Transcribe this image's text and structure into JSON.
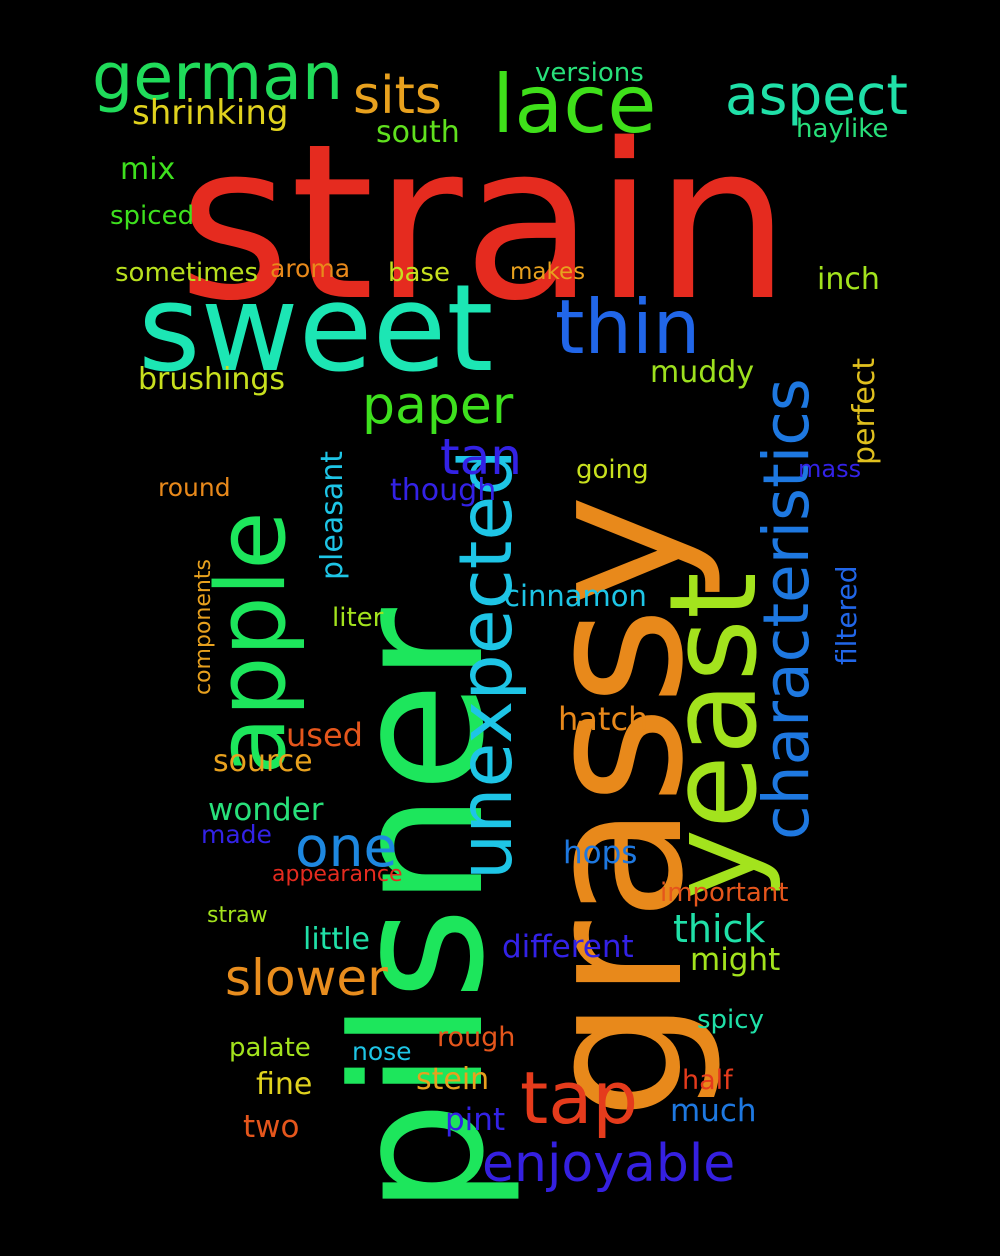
{
  "background": "#000000",
  "words": [
    {
      "text": "strain",
      "color": "#e52b1f"
    },
    {
      "text": "pilsner",
      "color": "#1de65c"
    },
    {
      "text": "grassy",
      "color": "#e8891b"
    },
    {
      "text": "yeast",
      "color": "#a3e31d"
    },
    {
      "text": "sweet",
      "color": "#1ce6b4"
    },
    {
      "text": "apple",
      "color": "#1de65c"
    },
    {
      "text": "unexpected",
      "color": "#1ec5e6"
    },
    {
      "text": "characteristics",
      "color": "#1e78e0"
    },
    {
      "text": "lace",
      "color": "#3fe01a"
    },
    {
      "text": "thin",
      "color": "#2166e8"
    },
    {
      "text": "tap",
      "color": "#e53b1c"
    },
    {
      "text": "german",
      "color": "#20db5a"
    },
    {
      "text": "aspect",
      "color": "#20e0a8"
    },
    {
      "text": "enjoyable",
      "color": "#3520e0"
    },
    {
      "text": "paper",
      "color": "#3ee01e"
    },
    {
      "text": "sits",
      "color": "#e8a11e"
    },
    {
      "text": "slower",
      "color": "#e88d1e"
    },
    {
      "text": "one",
      "color": "#1e88e0"
    },
    {
      "text": "tan",
      "color": "#3322e6"
    },
    {
      "text": "shrinking",
      "color": "#e0d21e"
    },
    {
      "text": "south",
      "color": "#60e01e"
    },
    {
      "text": "versions",
      "color": "#28e07a"
    },
    {
      "text": "haylike",
      "color": "#28e07a"
    },
    {
      "text": "mix",
      "color": "#3ee01e"
    },
    {
      "text": "spiced",
      "color": "#3ee01e"
    },
    {
      "text": "sometimes",
      "color": "#b8e01e"
    },
    {
      "text": "aroma",
      "color": "#e8891b"
    },
    {
      "text": "base",
      "color": "#c8e01e"
    },
    {
      "text": "makes",
      "color": "#e8a11e"
    },
    {
      "text": "inch",
      "color": "#a3e31d"
    },
    {
      "text": "brushings",
      "color": "#c8e01e"
    },
    {
      "text": "muddy",
      "color": "#9de01e"
    },
    {
      "text": "perfect",
      "color": "#e0c01e"
    },
    {
      "text": "mass",
      "color": "#3322e6"
    },
    {
      "text": "round",
      "color": "#e8891b"
    },
    {
      "text": "pleasant",
      "color": "#1ec5e6"
    },
    {
      "text": "though",
      "color": "#3322e6"
    },
    {
      "text": "going",
      "color": "#c8e01e"
    },
    {
      "text": "filtered",
      "color": "#2166e8"
    },
    {
      "text": "cinnamon",
      "color": "#1ec5e6"
    },
    {
      "text": "components",
      "color": "#e8a11e"
    },
    {
      "text": "liter",
      "color": "#a3e31d"
    },
    {
      "text": "hatch",
      "color": "#e8891b"
    },
    {
      "text": "used",
      "color": "#e5561c"
    },
    {
      "text": "source",
      "color": "#e8a11e"
    },
    {
      "text": "wonder",
      "color": "#28e07a"
    },
    {
      "text": "made",
      "color": "#3322e6"
    },
    {
      "text": "hops",
      "color": "#1e78e0"
    },
    {
      "text": "appearance",
      "color": "#e52b1f"
    },
    {
      "text": "important",
      "color": "#e5561c"
    },
    {
      "text": "straw",
      "color": "#a3e31d"
    },
    {
      "text": "thick",
      "color": "#20e0a8"
    },
    {
      "text": "little",
      "color": "#20e0a8"
    },
    {
      "text": "different",
      "color": "#3322e6"
    },
    {
      "text": "might",
      "color": "#a3e31d"
    },
    {
      "text": "spicy",
      "color": "#20e0a8"
    },
    {
      "text": "palate",
      "color": "#a3e31d"
    },
    {
      "text": "nose",
      "color": "#1ec5e6"
    },
    {
      "text": "rough",
      "color": "#e5561c"
    },
    {
      "text": "fine",
      "color": "#e0d21e"
    },
    {
      "text": "stein",
      "color": "#e8a11e"
    },
    {
      "text": "half",
      "color": "#e53b1c"
    },
    {
      "text": "two",
      "color": "#e5561c"
    },
    {
      "text": "pint",
      "color": "#3322e6"
    },
    {
      "text": "much",
      "color": "#1e78e0"
    }
  ]
}
